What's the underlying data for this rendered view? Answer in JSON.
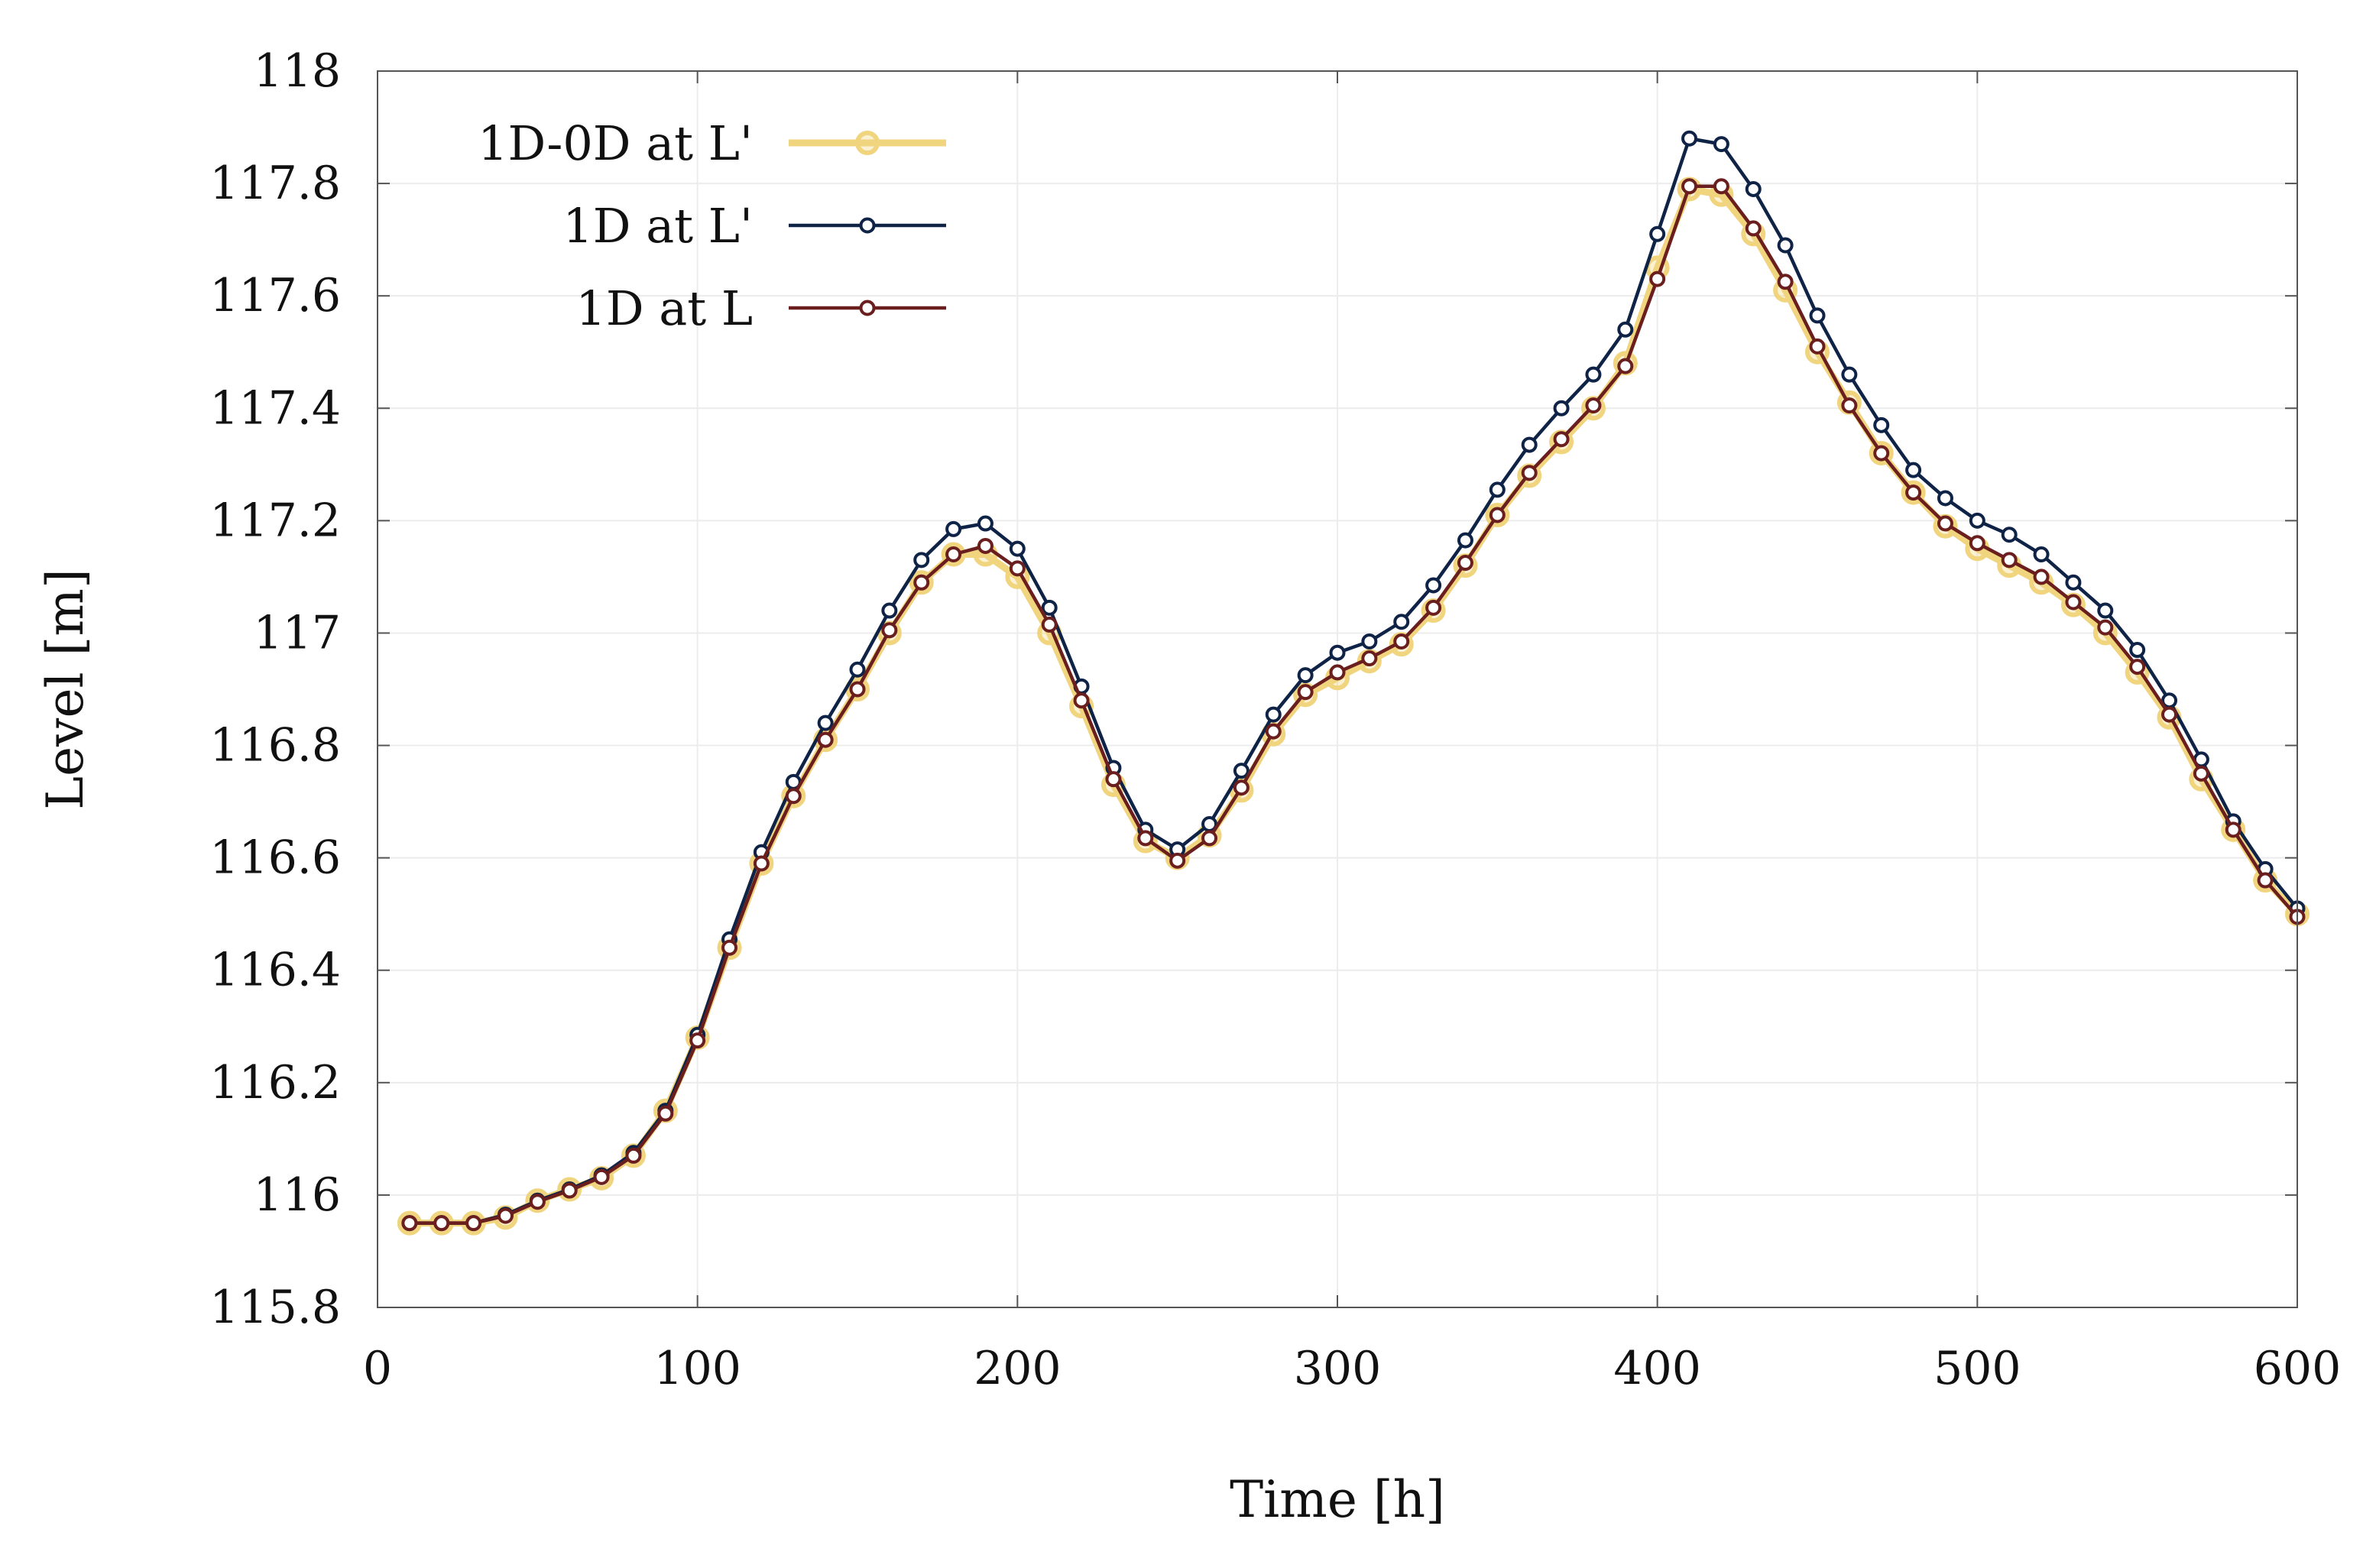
{
  "chart_data": {
    "type": "line",
    "title": "",
    "xlabel": "Time [h]",
    "ylabel": "Level [m]",
    "xlim": [
      0,
      600
    ],
    "ylim": [
      115.8,
      118
    ],
    "xticks": [
      0,
      100,
      200,
      300,
      400,
      500,
      600
    ],
    "xtick_labels": [
      "0",
      "100",
      "200",
      "300",
      "400",
      "500",
      "600"
    ],
    "yticks": [
      115.8,
      116,
      116.2,
      116.4,
      116.6,
      116.8,
      117,
      117.2,
      117.4,
      117.6,
      117.8,
      118
    ],
    "ytick_labels": [
      "115.8",
      "116",
      "116.2",
      "116.4",
      "116.6",
      "116.8",
      "117",
      "117.2",
      "117.4",
      "117.6",
      "117.8",
      "118"
    ],
    "grid": true,
    "legend_position": "top-left",
    "x": [
      10,
      20,
      30,
      40,
      50,
      60,
      70,
      80,
      90,
      100,
      110,
      120,
      130,
      140,
      150,
      160,
      170,
      180,
      190,
      200,
      210,
      220,
      230,
      240,
      250,
      260,
      270,
      280,
      290,
      300,
      310,
      320,
      330,
      340,
      350,
      360,
      370,
      380,
      390,
      400,
      410,
      420,
      430,
      440,
      450,
      460,
      470,
      480,
      490,
      500,
      510,
      520,
      530,
      540,
      550,
      560,
      570,
      580,
      590,
      600
    ],
    "series": [
      {
        "name": "1D-0D at L'",
        "color": "#f0d47e",
        "values": [
          115.95,
          115.95,
          115.95,
          115.96,
          115.99,
          116.01,
          116.03,
          116.07,
          116.15,
          116.28,
          116.44,
          116.59,
          116.71,
          116.81,
          116.9,
          117.0,
          117.09,
          117.14,
          117.14,
          117.1,
          117.0,
          116.87,
          116.73,
          116.63,
          116.6,
          116.64,
          116.72,
          116.82,
          116.89,
          116.92,
          116.95,
          116.98,
          117.04,
          117.12,
          117.21,
          117.28,
          117.34,
          117.4,
          117.48,
          117.65,
          117.79,
          117.78,
          117.71,
          117.61,
          117.5,
          117.41,
          117.32,
          117.25,
          117.19,
          117.15,
          117.12,
          117.09,
          117.05,
          117.0,
          116.93,
          116.85,
          116.74,
          116.65,
          116.56,
          116.5
        ]
      },
      {
        "name": "1D at L'",
        "color": "#0f2347",
        "values": [
          115.95,
          115.95,
          115.95,
          115.965,
          115.99,
          116.01,
          116.035,
          116.075,
          116.15,
          116.285,
          116.455,
          116.61,
          116.735,
          116.84,
          116.935,
          117.04,
          117.13,
          117.185,
          117.195,
          117.15,
          117.045,
          116.905,
          116.76,
          116.65,
          116.615,
          116.66,
          116.755,
          116.855,
          116.925,
          116.965,
          116.985,
          117.02,
          117.085,
          117.165,
          117.255,
          117.335,
          117.4,
          117.46,
          117.54,
          117.71,
          117.88,
          117.87,
          117.79,
          117.69,
          117.565,
          117.46,
          117.37,
          117.29,
          117.24,
          117.2,
          117.175,
          117.14,
          117.09,
          117.04,
          116.97,
          116.88,
          116.775,
          116.665,
          116.58,
          116.51
        ]
      },
      {
        "name": "1D at L",
        "color": "#6b1e1e",
        "values": [
          115.95,
          115.95,
          115.95,
          115.963,
          115.988,
          116.008,
          116.032,
          116.07,
          116.145,
          116.275,
          116.44,
          116.59,
          116.71,
          116.81,
          116.9,
          117.005,
          117.09,
          117.14,
          117.155,
          117.115,
          117.015,
          116.88,
          116.74,
          116.635,
          116.595,
          116.635,
          116.725,
          116.825,
          116.895,
          116.93,
          116.955,
          116.985,
          117.045,
          117.125,
          117.21,
          117.285,
          117.345,
          117.405,
          117.475,
          117.63,
          117.795,
          117.795,
          117.72,
          117.625,
          117.51,
          117.405,
          117.32,
          117.25,
          117.195,
          117.16,
          117.13,
          117.1,
          117.055,
          117.01,
          116.94,
          116.855,
          116.75,
          116.65,
          116.56,
          116.495
        ]
      }
    ]
  }
}
